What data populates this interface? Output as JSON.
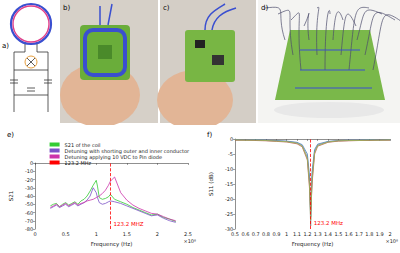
{
  "panels": [
    {
      "label": "a)"
    },
    {
      "label": "b)"
    },
    {
      "label": "c)"
    },
    {
      "label": "d)"
    }
  ],
  "chart_data": [
    {
      "type": "line",
      "title": "e)",
      "xlabel": "Frequency (Hz)",
      "x_scale_note": "×10⁸",
      "ylabel": "S21",
      "x": [
        0.25,
        0.3,
        0.35,
        0.4,
        0.45,
        0.5,
        0.55,
        0.6,
        0.65,
        0.7,
        0.75,
        0.8,
        0.85,
        0.9,
        0.95,
        1.0,
        1.02,
        1.05,
        1.1,
        1.15,
        1.2,
        1.232,
        1.3,
        1.4,
        1.5,
        1.6,
        1.7,
        1.8,
        1.9,
        2.0,
        2.1,
        2.2,
        2.3
      ],
      "series": [
        {
          "name": "S21 of the coil",
          "color": "#33cc33",
          "values": [
            -52,
            -50,
            -49,
            -53,
            -50,
            -48,
            -51,
            -49,
            -47,
            -50,
            -46,
            -44,
            -40,
            -34,
            -27,
            -21,
            -28,
            -42,
            -44,
            -43,
            -41,
            -38,
            -44,
            -47,
            -50,
            -54,
            -57,
            -60,
            -63,
            -62,
            -66,
            -68,
            -71
          ]
        },
        {
          "name": "Detuning with shorting outer and inner conductor",
          "color": "#7b52c7",
          "values": [
            -55,
            -53,
            -51,
            -54,
            -52,
            -50,
            -53,
            -51,
            -49,
            -52,
            -50,
            -48,
            -45,
            -40,
            -30,
            -36,
            -42,
            -48,
            -50,
            -49,
            -47,
            -46,
            -47,
            -49,
            -52,
            -55,
            -58,
            -61,
            -64,
            -63,
            -67,
            -70,
            -72
          ]
        },
        {
          "name": "Detuning applying 10 VDC to Pin diode",
          "color": "#cc33aa",
          "values": [
            -54,
            -52,
            -50,
            -53,
            -51,
            -49,
            -52,
            -50,
            -48,
            -51,
            -49,
            -48,
            -46,
            -45,
            -44,
            -42,
            -41,
            -40,
            -37,
            -33,
            -27,
            -22,
            -17,
            -36,
            -45,
            -51,
            -55,
            -58,
            -61,
            -62,
            -65,
            -68,
            -70
          ]
        }
      ],
      "vline": {
        "name": "123.2 MHz",
        "x": 1.232,
        "color": "#ff0000",
        "line_style": "dashed"
      },
      "annotation": {
        "text": "123.2 MHZ",
        "x": 1.232,
        "y": -74
      },
      "xlim": [
        0,
        2.5
      ],
      "xticks": [
        0,
        0.5,
        1,
        1.5,
        2,
        2.5
      ],
      "ylim": [
        -80,
        0
      ],
      "yticks": [
        -80,
        -70,
        -60,
        -50,
        -40,
        -30,
        -20,
        -10,
        0
      ],
      "grid": false,
      "legend": "upper right"
    },
    {
      "type": "line",
      "title": "f)",
      "xlabel": "Frequency (Hz)",
      "x_scale_note": "×10⁸",
      "ylabel": "S11 (dB)",
      "x": [
        0.5,
        0.6,
        0.7,
        0.8,
        0.9,
        1.0,
        1.1,
        1.15,
        1.2,
        1.22,
        1.232,
        1.245,
        1.27,
        1.3,
        1.4,
        1.5,
        1.6,
        1.7,
        1.8,
        1.9,
        2.0
      ],
      "series": [
        {
          "color": "#888888",
          "values": [
            -0.3,
            -0.3,
            -0.4,
            -0.5,
            -0.6,
            -0.8,
            -1.3,
            -2.2,
            -6,
            -14,
            -29,
            -13,
            -4,
            -2,
            -0.9,
            -0.6,
            -0.5,
            -0.4,
            -0.4,
            -0.3,
            -0.3
          ]
        },
        {
          "color": "#4d7fbf",
          "values": [
            -0.2,
            -0.3,
            -0.3,
            -0.4,
            -0.5,
            -0.7,
            -1.1,
            -1.9,
            -5,
            -12,
            -26,
            -11,
            -3.5,
            -1.7,
            -0.8,
            -0.5,
            -0.4,
            -0.4,
            -0.3,
            -0.3,
            -0.2
          ]
        },
        {
          "color": "#c0504d",
          "values": [
            -0.4,
            -0.4,
            -0.5,
            -0.6,
            -0.8,
            -1.0,
            -1.6,
            -2.6,
            -7,
            -16,
            -24,
            -15,
            -5,
            -2.4,
            -1.1,
            -0.7,
            -0.6,
            -0.5,
            -0.5,
            -0.4,
            -0.4
          ]
        },
        {
          "color": "#9bbb59",
          "values": [
            -0.3,
            -0.4,
            -0.4,
            -0.5,
            -0.7,
            -0.9,
            -1.4,
            -2.4,
            -6.5,
            -15,
            -27,
            -14,
            -4.5,
            -2.2,
            -1.0,
            -0.6,
            -0.5,
            -0.5,
            -0.4,
            -0.4,
            -0.3
          ]
        }
      ],
      "vline": {
        "x": 1.232,
        "color": "#ff0000",
        "line_style": "dashed"
      },
      "annotation": {
        "text": "123.2 MHz",
        "x": 1.232,
        "y": -28
      },
      "xlim": [
        0.5,
        2.0
      ],
      "xticks": [
        0.5,
        0.6,
        0.7,
        0.8,
        0.9,
        1,
        1.1,
        1.2,
        1.3,
        1.4,
        1.5,
        1.6,
        1.7,
        1.8,
        1.9,
        2
      ],
      "ylim": [
        -30,
        0
      ],
      "yticks": [
        -30,
        -25,
        -20,
        -15,
        -10,
        -5,
        0
      ],
      "grid": false
    }
  ]
}
